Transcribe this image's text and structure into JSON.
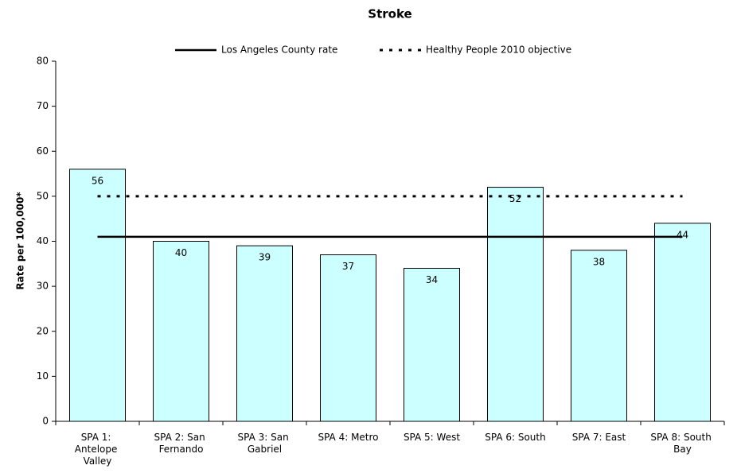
{
  "chart_data": {
    "type": "bar",
    "title": "Stroke",
    "y_label": "Rate per 100,000*",
    "categories": [
      "SPA 1: Antelope Valley",
      "SPA 2: San Fernando",
      "SPA 3: San Gabriel",
      "SPA 4: Metro",
      "SPA 5: West",
      "SPA 6: South",
      "SPA 7: East",
      "SPA 8: South Bay"
    ],
    "values": [
      56,
      40,
      39,
      37,
      34,
      52,
      38,
      44
    ],
    "color": "#ccffff",
    "ylim": [
      0,
      80
    ],
    "yticks": [
      0,
      10,
      20,
      30,
      40,
      50,
      60,
      70,
      80
    ],
    "grid": false,
    "reference_lines": [
      {
        "name": "Los Angeles County rate",
        "value": 41,
        "style": "solid"
      },
      {
        "name": "Healthy People 2010 objective",
        "value": 50,
        "style": "dotted"
      }
    ],
    "legend": "top"
  }
}
